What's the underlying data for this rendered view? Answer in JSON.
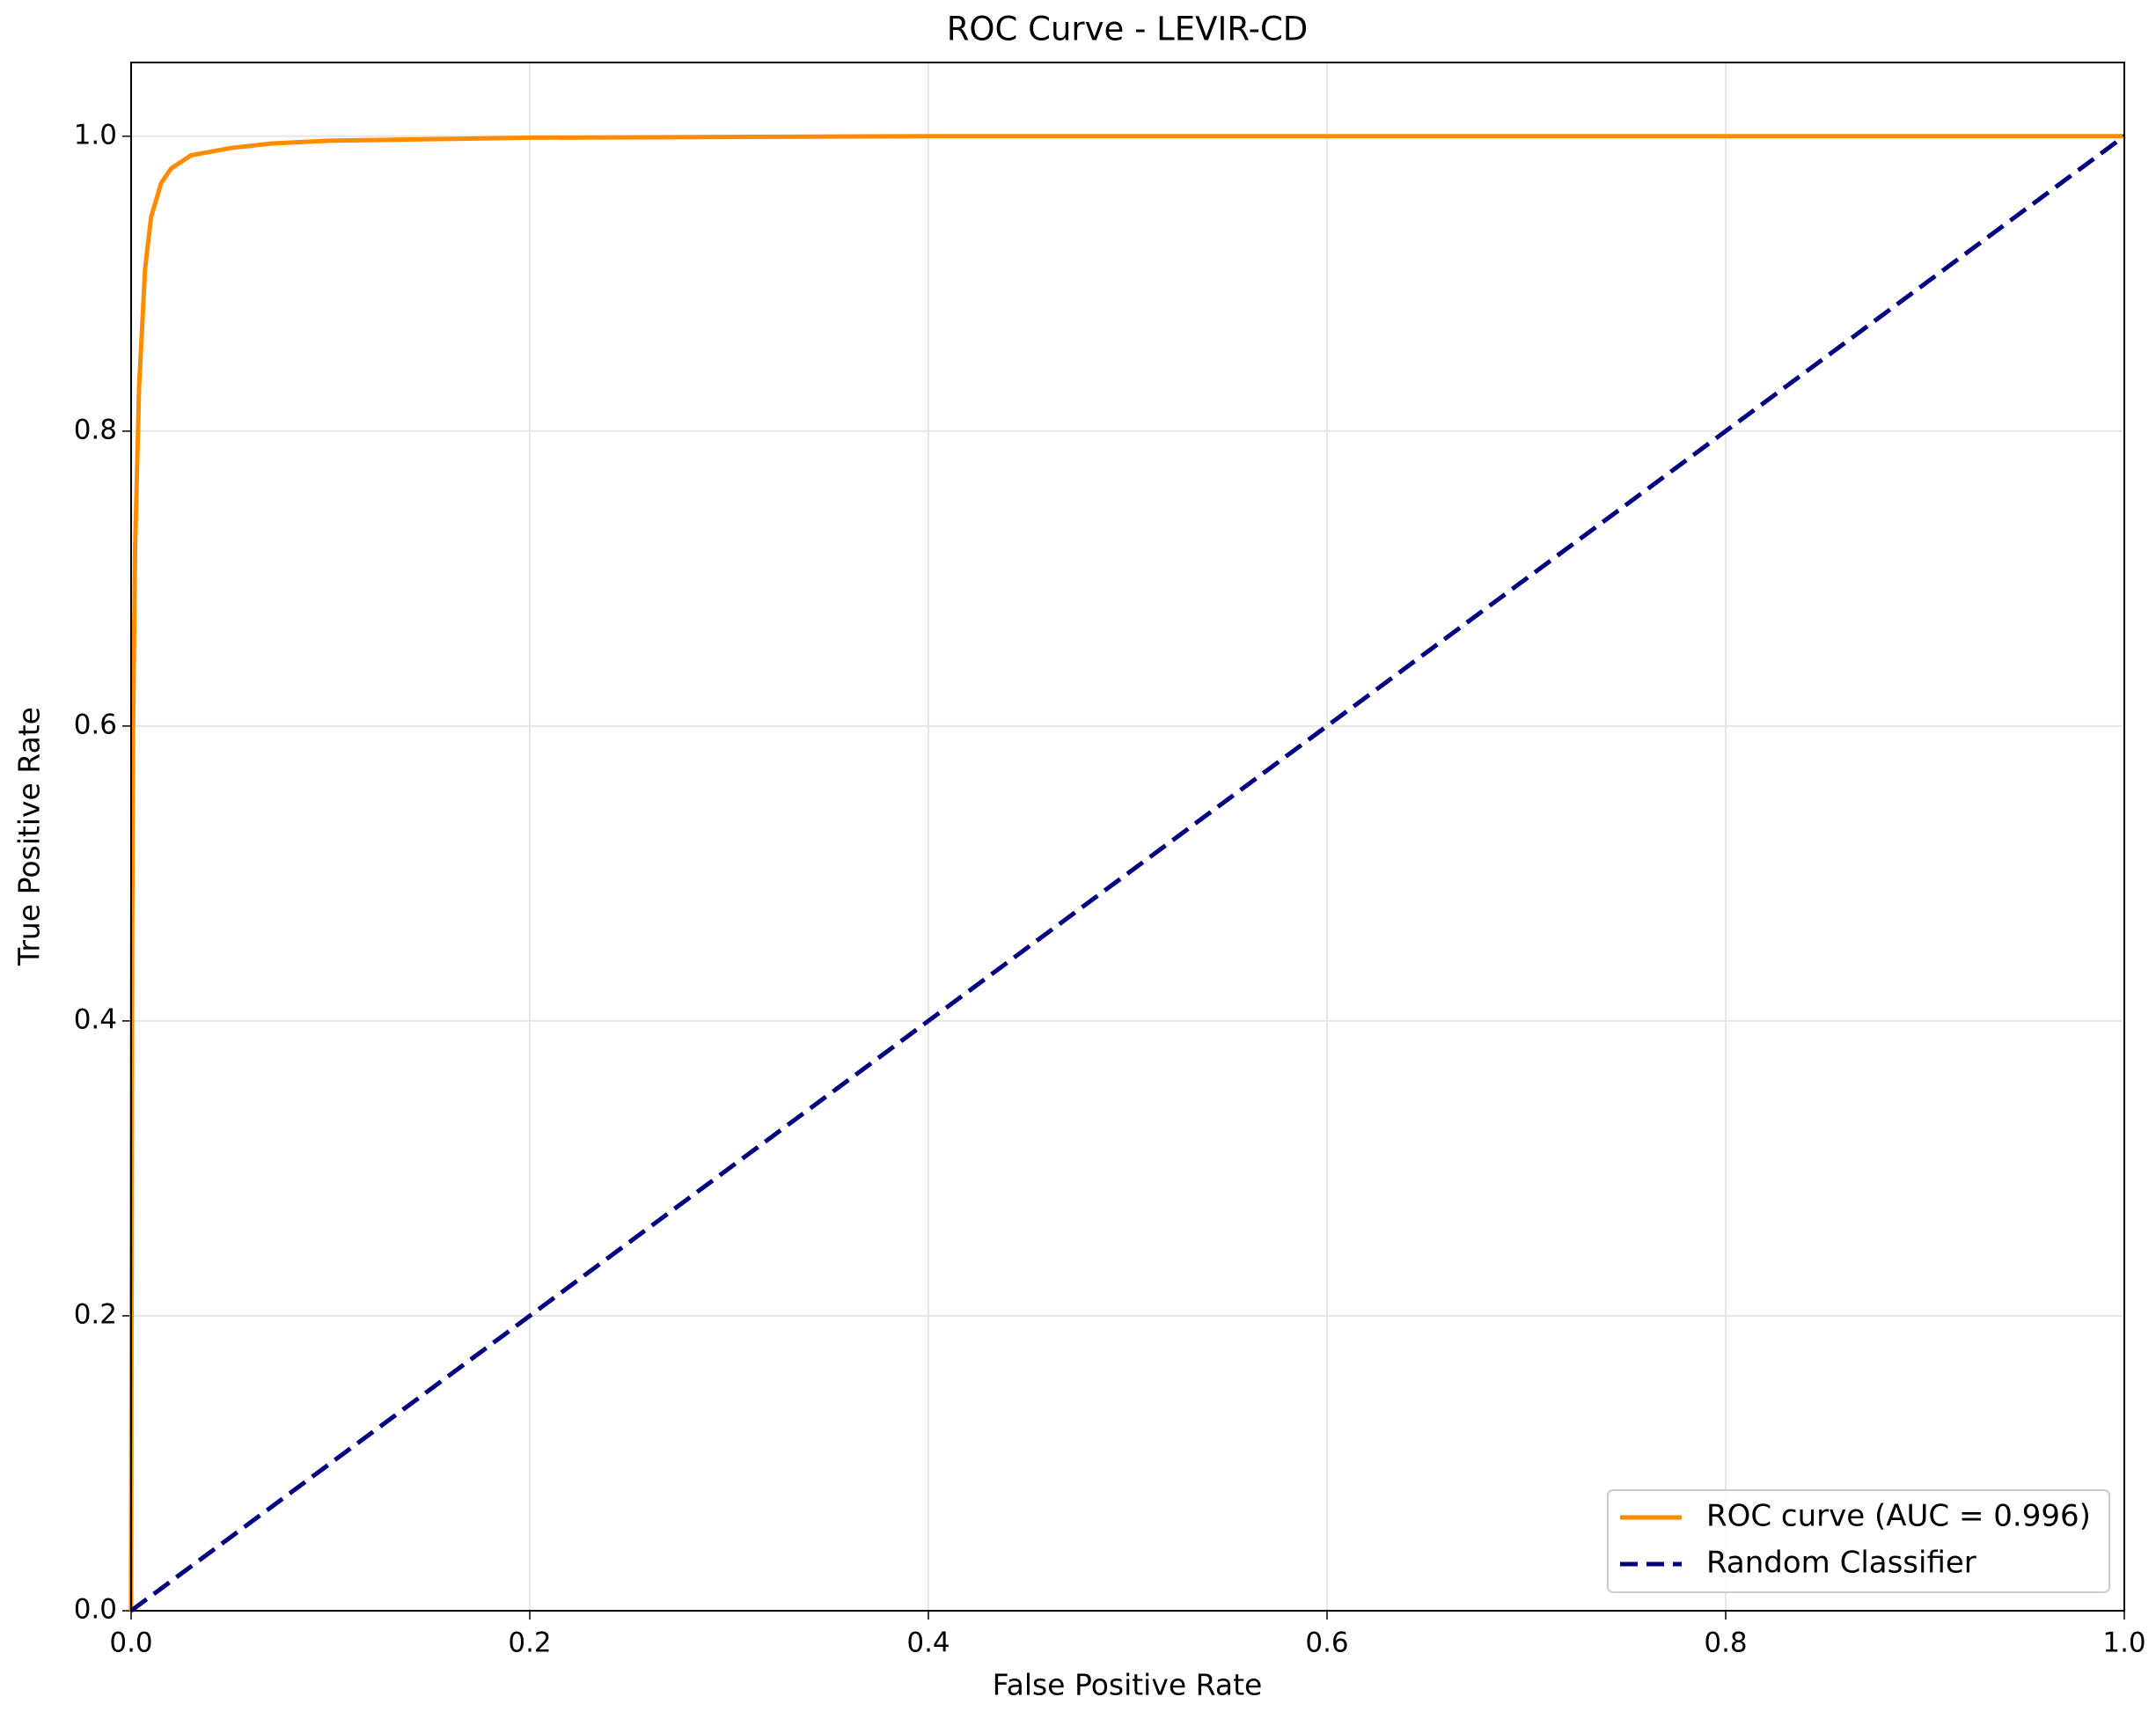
{
  "chart_data": {
    "type": "line",
    "title": "ROC Curve - LEVIR-CD",
    "x_label": "False Positive Rate",
    "y_label": "True Positive Rate",
    "series": [
      {
        "name": "ROC curve (AUC = 0.996)",
        "color": "#ff8c00",
        "linestyle": "solid",
        "x": [
          0,
          0.0005,
          0.001,
          0.002,
          0.004,
          0.007,
          0.01,
          0.015,
          0.02,
          0.03,
          0.05,
          0.07,
          0.1,
          0.15,
          0.2,
          0.4,
          1
        ],
        "values": [
          0,
          0.45,
          0.6,
          0.72,
          0.83,
          0.91,
          0.945,
          0.968,
          0.978,
          0.987,
          0.992,
          0.995,
          0.997,
          0.998,
          0.999,
          1.0,
          1.0
        ]
      },
      {
        "name": "Random Classifier",
        "color": "#000080",
        "linestyle": "dashed",
        "x": [
          0,
          1
        ],
        "values": [
          0,
          1
        ]
      }
    ],
    "xlim": [
      0,
      1
    ],
    "ylim": [
      0,
      1.05
    ],
    "xticks": [
      {
        "value": 0,
        "label": "0.0"
      },
      0.2,
      0.4,
      0.6,
      0.8,
      {
        "value": 1,
        "label": "1.0"
      }
    ],
    "yticks": [
      {
        "value": 0,
        "label": "0.0"
      },
      0.2,
      0.4,
      0.6,
      0.8,
      {
        "value": 1,
        "label": "1.0"
      }
    ],
    "grid": true,
    "legend": "lower right"
  }
}
